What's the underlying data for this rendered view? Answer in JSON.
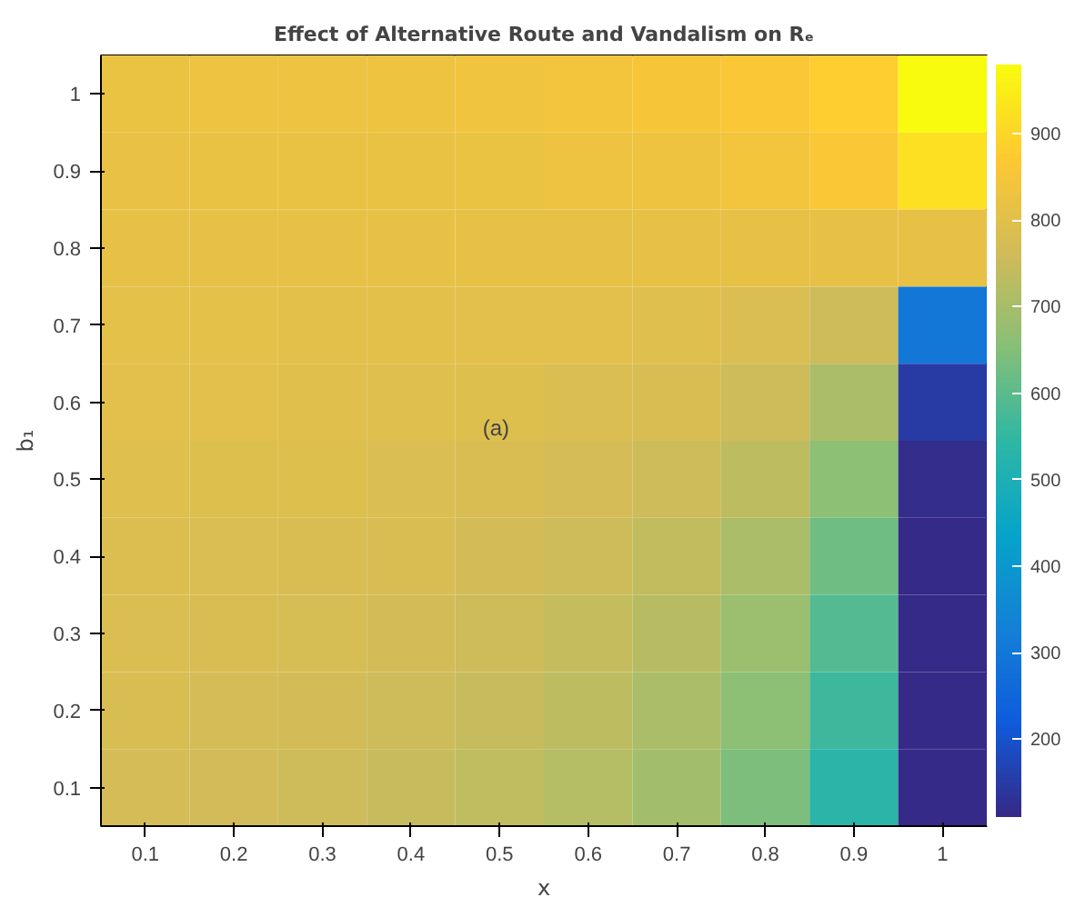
{
  "chart_data": {
    "type": "heatmap",
    "title": "Effect of Alternative Route and Vandalism on Rₑ",
    "xlabel": "x",
    "ylabel": "b₁",
    "categories": [
      "0.1",
      "0.2",
      "0.3",
      "0.4",
      "0.5",
      "0.6",
      "0.7",
      "0.8",
      "0.9",
      "1"
    ],
    "y_categories": [
      "1",
      "0.9",
      "0.8",
      "0.7",
      "0.6",
      "0.5",
      "0.4",
      "0.3",
      "0.2",
      "0.1"
    ],
    "cells": [
      [
        826,
        828,
        830,
        833,
        836,
        842,
        851,
        858,
        880,
        980
      ],
      [
        820,
        821,
        822,
        823,
        825,
        828,
        833,
        842,
        858,
        920
      ],
      [
        814,
        814,
        814,
        814,
        814,
        814,
        814,
        814,
        814,
        814
      ],
      [
        808,
        807,
        806,
        805,
        803,
        800,
        796,
        786,
        757,
        300
      ],
      [
        802,
        800,
        798,
        796,
        792,
        786,
        777,
        757,
        707,
        150
      ],
      [
        796,
        793,
        790,
        786,
        780,
        771,
        757,
        732,
        662,
        120
      ],
      [
        789,
        786,
        782,
        777,
        769,
        757,
        740,
        707,
        624,
        110
      ],
      [
        783,
        779,
        774,
        767,
        757,
        744,
        724,
        684,
        590,
        110
      ],
      [
        777,
        772,
        766,
        757,
        747,
        732,
        707,
        662,
        562,
        110
      ],
      [
        770,
        765,
        757,
        748,
        736,
        719,
        692,
        641,
        533,
        110
      ]
    ],
    "clim": [
      110,
      980
    ],
    "cticks": [
      200,
      300,
      400,
      500,
      600,
      700,
      800,
      900
    ],
    "annotations": [
      "(a)"
    ]
  }
}
